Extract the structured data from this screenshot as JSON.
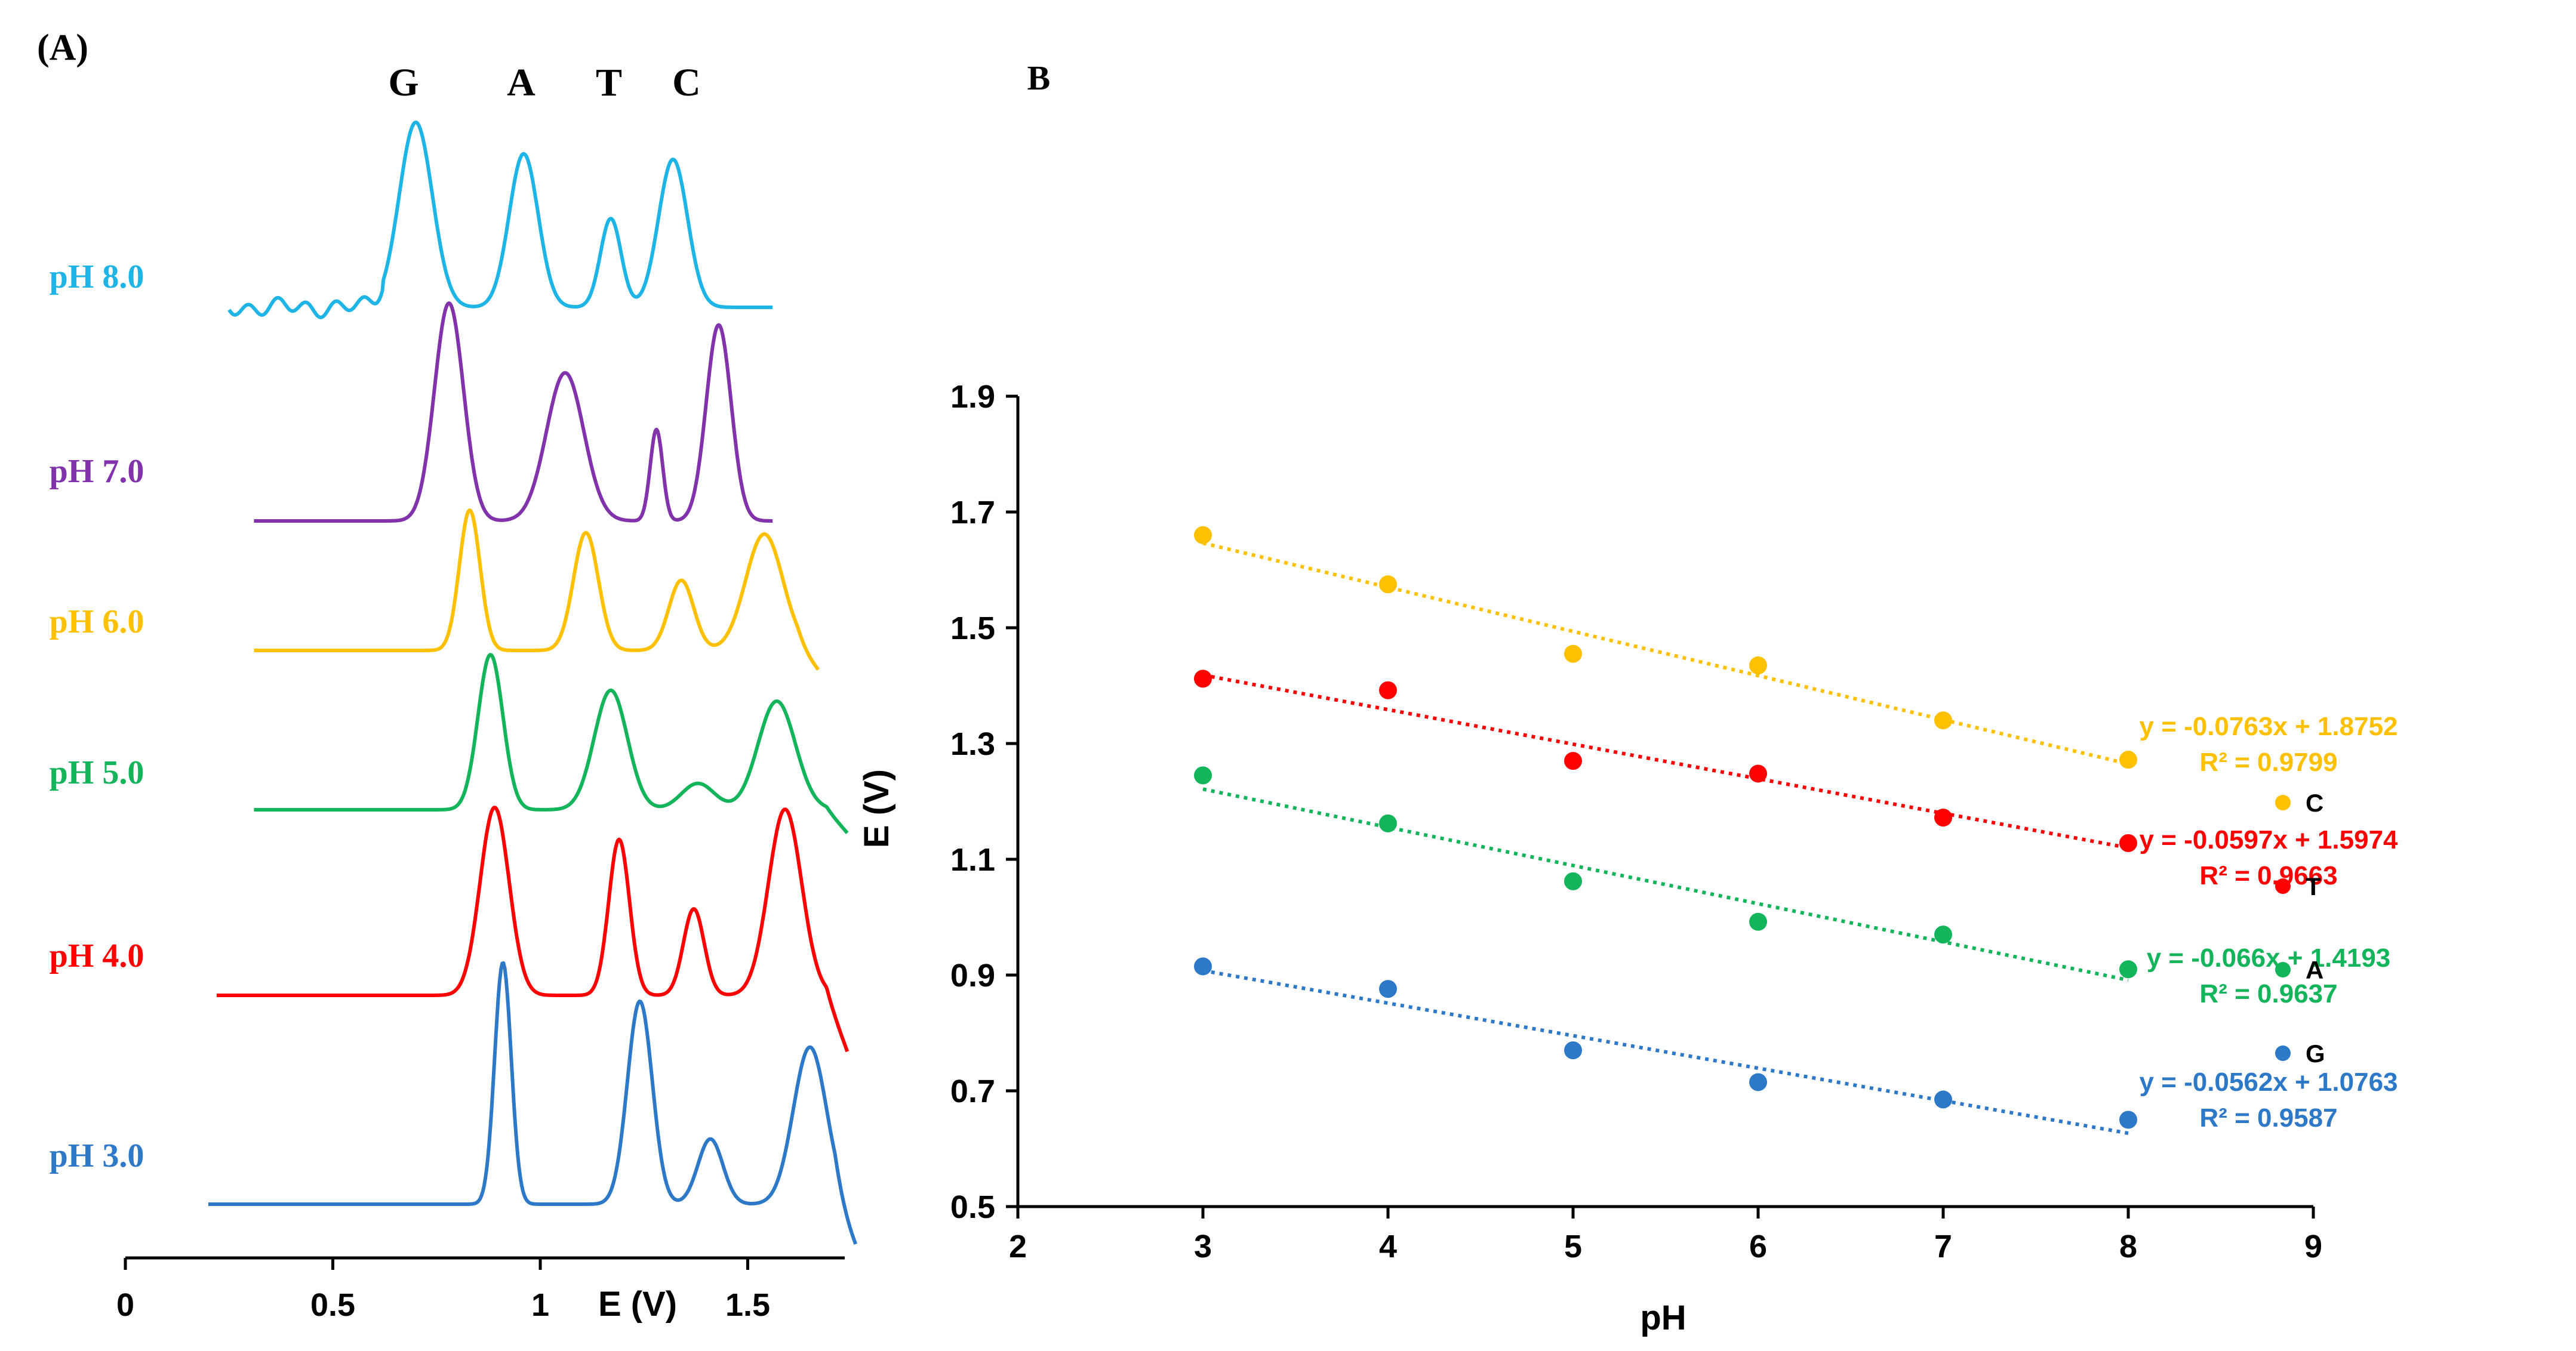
{
  "panel_a": {
    "label": "(A)",
    "peak_labels": [
      "G",
      "A",
      "T",
      "C"
    ],
    "xlabel": "E (V)",
    "x_ticks": [
      "0",
      "0.5",
      "1",
      "1.5"
    ],
    "xlim": [
      0,
      1.75
    ],
    "curves": [
      {
        "name": "pH 8.0",
        "color": "#1EB4E6",
        "x_start": 0.25,
        "x_end": 1.56,
        "end_drop": 0.0,
        "noise": true,
        "peaks": [
          {
            "e": 0.7,
            "h": 1.0,
            "w": 0.04
          },
          {
            "e": 0.96,
            "h": 0.83,
            "w": 0.035
          },
          {
            "e": 1.17,
            "h": 0.48,
            "w": 0.025
          },
          {
            "e": 1.32,
            "h": 0.8,
            "w": 0.035
          }
        ]
      },
      {
        "name": "pH 7.0",
        "color": "#8232AA",
        "x_start": 0.31,
        "x_end": 1.56,
        "end_drop": 0.0,
        "noise": false,
        "peaks": [
          {
            "e": 0.78,
            "h": 1.0,
            "w": 0.035
          },
          {
            "e": 1.06,
            "h": 0.68,
            "w": 0.045
          },
          {
            "e": 1.28,
            "h": 0.42,
            "w": 0.015
          },
          {
            "e": 1.43,
            "h": 0.9,
            "w": 0.03
          }
        ]
      },
      {
        "name": "pH 6.0",
        "color": "#FFC000",
        "x_start": 0.31,
        "x_end": 1.67,
        "end_drop": 0.15,
        "noise": false,
        "peaks": [
          {
            "e": 0.83,
            "h": 1.0,
            "w": 0.025
          },
          {
            "e": 1.11,
            "h": 0.84,
            "w": 0.03
          },
          {
            "e": 1.34,
            "h": 0.5,
            "w": 0.03
          },
          {
            "e": 1.54,
            "h": 0.83,
            "w": 0.045
          }
        ]
      },
      {
        "name": "pH 5.0",
        "color": "#14B45A",
        "x_start": 0.31,
        "x_end": 1.74,
        "end_drop": 0.15,
        "noise": false,
        "peaks": [
          {
            "e": 0.88,
            "h": 1.0,
            "w": 0.03
          },
          {
            "e": 1.17,
            "h": 0.77,
            "w": 0.04
          },
          {
            "e": 1.38,
            "h": 0.17,
            "w": 0.04
          },
          {
            "e": 1.57,
            "h": 0.7,
            "w": 0.045
          }
        ]
      },
      {
        "name": "pH 4.0",
        "color": "#FF0000",
        "x_start": 0.22,
        "x_end": 1.74,
        "end_drop": 0.3,
        "noise": false,
        "peaks": [
          {
            "e": 0.89,
            "h": 1.0,
            "w": 0.035
          },
          {
            "e": 1.19,
            "h": 0.83,
            "w": 0.025
          },
          {
            "e": 1.37,
            "h": 0.46,
            "w": 0.025
          },
          {
            "e": 1.59,
            "h": 0.99,
            "w": 0.04
          }
        ]
      },
      {
        "name": "pH 3.0",
        "color": "#2E78C8",
        "x_start": 0.2,
        "x_end": 1.76,
        "end_drop": 0.18,
        "noise": false,
        "peaks": [
          {
            "e": 0.91,
            "h": 1.0,
            "w": 0.02
          },
          {
            "e": 1.24,
            "h": 0.84,
            "w": 0.03
          },
          {
            "e": 1.41,
            "h": 0.27,
            "w": 0.03
          },
          {
            "e": 1.65,
            "h": 0.65,
            "w": 0.04
          }
        ]
      }
    ]
  },
  "panel_b": {
    "label": "B",
    "xlabel": "pH",
    "ylabel": "E (V)"
  },
  "chart_data": [
    {
      "type": "line",
      "title": "(A)",
      "xlabel": "E (V)",
      "ylabel": "",
      "xlim": [
        0,
        1.75
      ],
      "x_ticks": [
        0,
        0.5,
        1,
        1.5
      ],
      "series": [
        {
          "name": "pH 8.0",
          "peak_potentials": [
            0.7,
            0.96,
            1.17,
            1.32
          ]
        },
        {
          "name": "pH 7.0",
          "peak_potentials": [
            0.78,
            1.06,
            1.28,
            1.43
          ]
        },
        {
          "name": "pH 6.0",
          "peak_potentials": [
            0.83,
            1.11,
            1.34,
            1.54
          ]
        },
        {
          "name": "pH 5.0",
          "peak_potentials": [
            0.88,
            1.17,
            1.38,
            1.57
          ]
        },
        {
          "name": "pH 4.0",
          "peak_potentials": [
            0.89,
            1.19,
            1.37,
            1.59
          ]
        },
        {
          "name": "pH 3.0",
          "peak_potentials": [
            0.91,
            1.24,
            1.41,
            1.65
          ]
        }
      ],
      "annotations": [
        "G",
        "A",
        "T",
        "C"
      ]
    },
    {
      "type": "scatter",
      "title": "B",
      "xlabel": "pH",
      "ylabel": "E (V)",
      "xlim": [
        2,
        9
      ],
      "ylim": [
        0.5,
        1.9
      ],
      "x_ticks": [
        2,
        3,
        4,
        5,
        6,
        7,
        8,
        9
      ],
      "y_ticks": [
        0.5,
        0.7,
        0.9,
        1.1,
        1.3,
        1.5,
        1.7,
        1.9
      ],
      "legend_position": "right",
      "series": [
        {
          "name": "C",
          "color": "#FFC000",
          "x": [
            3,
            4,
            5,
            6,
            7,
            8
          ],
          "y": [
            1.66,
            1.575,
            1.455,
            1.435,
            1.34,
            1.272
          ],
          "fit": {
            "slope": -0.0763,
            "intercept": 1.8752
          },
          "equation": "y = -0.0763x + 1.8752",
          "r2": "R² = 0.9799"
        },
        {
          "name": "T",
          "color": "#FF0000",
          "x": [
            3,
            4,
            5,
            6,
            7,
            8
          ],
          "y": [
            1.412,
            1.392,
            1.27,
            1.248,
            1.172,
            1.128
          ],
          "fit": {
            "slope": -0.0597,
            "intercept": 1.5974
          },
          "equation": "y = -0.0597x + 1.5974",
          "r2": "R² = 0.9663"
        },
        {
          "name": "A",
          "color": "#14B45A",
          "x": [
            3,
            4,
            5,
            6,
            7,
            8
          ],
          "y": [
            1.245,
            1.162,
            1.062,
            0.992,
            0.97,
            0.91
          ],
          "fit": {
            "slope": -0.066,
            "intercept": 1.4193
          },
          "equation": "y = -0.066x + 1.4193",
          "r2": "R² = 0.9637"
        },
        {
          "name": "G",
          "color": "#2E78C8",
          "x": [
            3,
            4,
            5,
            6,
            7,
            8
          ],
          "y": [
            0.915,
            0.876,
            0.77,
            0.715,
            0.685,
            0.65
          ],
          "fit": {
            "slope": -0.0562,
            "intercept": 1.0763
          },
          "equation": "y = -0.0562x + 1.0763",
          "r2": "R² = 0.9587"
        }
      ]
    }
  ]
}
